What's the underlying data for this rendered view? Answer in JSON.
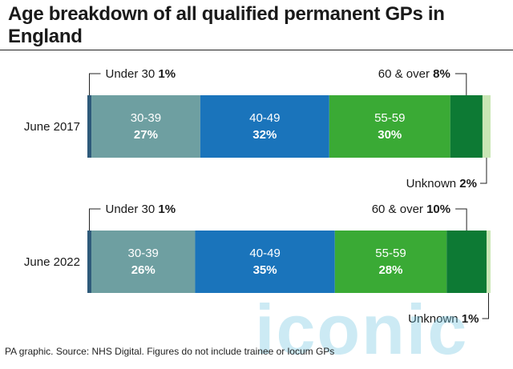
{
  "title": "Age breakdown of all qualified permanent GPs in England",
  "source": "PA graphic. Source: NHS Digital. Figures do not include trainee or locum GPs",
  "watermark": "iconic",
  "colors": {
    "Under 30": "#2e5a7a",
    "30-39": "#6e9fa1",
    "40-49": "#1a74bb",
    "55-59": "#3aaa35",
    "60 & over": "#0d7a34",
    "Unknown": "#c9e6b5"
  },
  "chart_data": {
    "type": "bar",
    "stacked": true,
    "orientation": "horizontal",
    "categories": [
      "June 2017",
      "June 2022"
    ],
    "series": [
      {
        "name": "Under 30",
        "values": [
          1,
          1
        ]
      },
      {
        "name": "30-39",
        "values": [
          27,
          26
        ]
      },
      {
        "name": "40-49",
        "values": [
          32,
          35
        ]
      },
      {
        "name": "55-59",
        "values": [
          30,
          28
        ]
      },
      {
        "name": "60 & over",
        "values": [
          8,
          10
        ]
      },
      {
        "name": "Unknown",
        "values": [
          2,
          1
        ]
      }
    ],
    "callouts": [
      {
        "label": "Under 30",
        "value": [
          "1%",
          "1%"
        ]
      },
      {
        "label": "60 & over",
        "value": [
          "8%",
          "10%"
        ]
      },
      {
        "label": "Unknown",
        "value": [
          "2%",
          "1%"
        ]
      }
    ],
    "segment_labels": [
      {
        "series": "30-39",
        "values": [
          "27%",
          "26%"
        ]
      },
      {
        "series": "40-49",
        "values": [
          "32%",
          "35%"
        ]
      },
      {
        "series": "55-59",
        "values": [
          "30%",
          "28%"
        ]
      }
    ]
  }
}
